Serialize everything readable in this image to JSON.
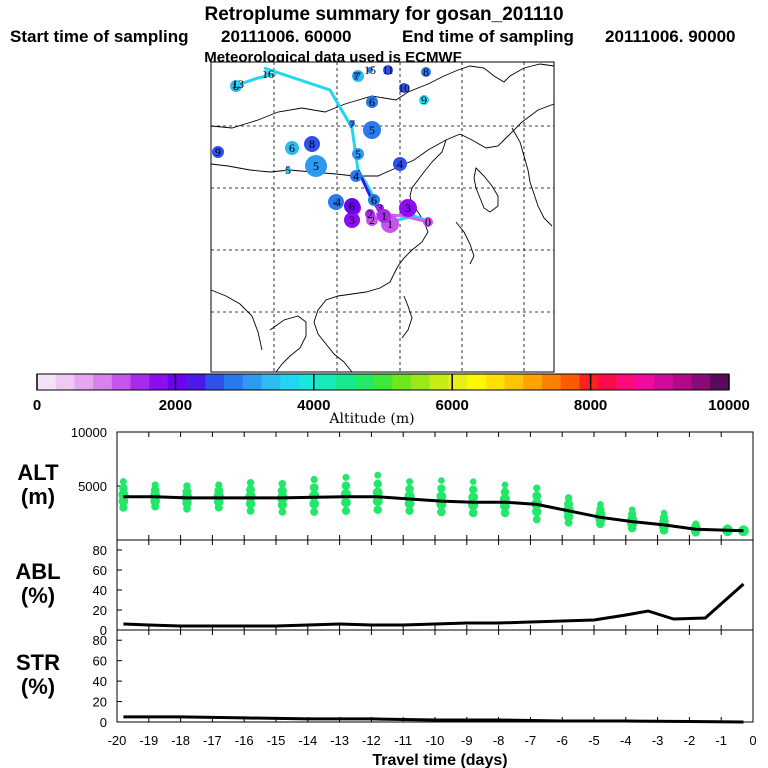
{
  "header": {
    "title": "Retroplume summary for gosan_201110",
    "start_label": "Start time of sampling",
    "start_value": "20111006. 60000",
    "end_label": "End time of sampling",
    "end_value": "20111006. 90000",
    "met": "Meteorological data used is ECMWF"
  },
  "colorbar": {
    "label": "Altitude (m)",
    "ticks": [
      "0",
      "2000",
      "4000",
      "6000",
      "8000",
      "10000"
    ],
    "colors": [
      "#f6e2f6",
      "#efc8f3",
      "#e5a8f0",
      "#d882ee",
      "#c655ed",
      "#a82bec",
      "#8a0ef0",
      "#6a05ee",
      "#4a1ae8",
      "#3050ea",
      "#2a7aef",
      "#2d9af2",
      "#2cbcf2",
      "#20d6f0",
      "#18e8dc",
      "#14ebb6",
      "#15ea8e",
      "#20ea66",
      "#3ee838",
      "#6ee81a",
      "#9ae81a",
      "#c6ec16",
      "#e6f012",
      "#fff800",
      "#ffe000",
      "#ffc400",
      "#ffa400",
      "#ff8000",
      "#ff5a00",
      "#ff2020",
      "#ff0a4a",
      "#ff0a7a",
      "#f20aa0",
      "#d20a9a",
      "#b00a8a",
      "#8a0a78",
      "#5a0a5a"
    ]
  },
  "map": {
    "plume_labels": [
      {
        "t": "0",
        "c": "#c655ed"
      },
      {
        "t": "1",
        "c": "#c655ed"
      },
      {
        "t": "2",
        "c": "#c655ed"
      },
      {
        "t": "3",
        "c": "#a82bec"
      },
      {
        "t": "4",
        "c": "#2a7aef"
      },
      {
        "t": "5",
        "c": "#2d9af2"
      },
      {
        "t": "6",
        "c": "#2a7aef"
      },
      {
        "t": "7",
        "c": "#2cbcf2"
      },
      {
        "t": "8",
        "c": "#2cbcf2"
      },
      {
        "t": "9",
        "c": "#20d6f0"
      },
      {
        "t": "10",
        "c": "#3050ea"
      },
      {
        "t": "11",
        "c": "#3050ea"
      },
      {
        "t": "13",
        "c": "#20d6f0"
      },
      {
        "t": "15",
        "c": "#2a7aef"
      },
      {
        "t": "16",
        "c": "#2cbcf2"
      },
      {
        "t": "6",
        "c": "#2a7aef"
      },
      {
        "t": "7",
        "c": "#2a7aef"
      },
      {
        "t": "5",
        "c": "#2a7aef"
      },
      {
        "t": "4",
        "c": "#3050ea"
      },
      {
        "t": "8",
        "c": "#3050ea"
      },
      {
        "t": "9",
        "c": "#3050ea"
      },
      {
        "t": "5",
        "c": "#2d9af2"
      },
      {
        "t": "6",
        "c": "#2cbcf2"
      },
      {
        "t": "8",
        "c": "#2a7aef"
      },
      {
        "t": "7",
        "c": "#2a7aef"
      },
      {
        "t": "5",
        "c": "#2cbcf2"
      },
      {
        "t": "4",
        "c": "#2a7aef"
      },
      {
        "t": "3",
        "c": "#8a0ef0"
      },
      {
        "t": "2",
        "c": "#8a0ef0"
      },
      {
        "t": "4",
        "c": "#2a7aef"
      },
      {
        "t": "6",
        "c": "#6a05ee"
      },
      {
        "t": "3",
        "c": "#8a0ef0"
      },
      {
        "t": "1",
        "c": "#a82bec"
      },
      {
        "t": "2",
        "c": "#a82bec"
      }
    ]
  },
  "chart_data": [
    {
      "type": "scatter",
      "name": "ALT",
      "ylabel": "ALT",
      "yunit": "(m)",
      "ylim": [
        0,
        10000
      ],
      "yticks": [
        "10000",
        "5000"
      ],
      "x": [
        -19.8,
        -18.8,
        -17.8,
        -16.8,
        -15.8,
        -14.8,
        -13.8,
        -12.8,
        -11.8,
        -10.8,
        -9.8,
        -8.8,
        -7.8,
        -6.8,
        -5.8,
        -4.8,
        -3.8,
        -2.8,
        -1.8,
        -0.8,
        -0.3
      ],
      "median": [
        4000,
        4000,
        3900,
        3900,
        3900,
        3900,
        3950,
        4000,
        4000,
        3800,
        3600,
        3500,
        3500,
        3300,
        2700,
        2100,
        1700,
        1400,
        1000,
        900,
        850
      ],
      "spread_upper": [
        5400,
        5100,
        5000,
        5100,
        5300,
        5200,
        5600,
        5800,
        6000,
        5400,
        5500,
        5400,
        5100,
        4800,
        3900,
        3300,
        2800,
        2500,
        1500,
        1100,
        900
      ],
      "spread_lower": [
        3000,
        3100,
        2900,
        3000,
        2700,
        2600,
        2600,
        2700,
        2800,
        2700,
        2600,
        2500,
        2500,
        1900,
        1600,
        1500,
        1100,
        900,
        700,
        700,
        700
      ]
    },
    {
      "type": "line",
      "name": "ABL",
      "ylabel": "ABL",
      "yunit": "(%)",
      "ylim": [
        0,
        90
      ],
      "yticks": [
        "0",
        "20",
        "40",
        "60",
        "80"
      ],
      "x": [
        -19.8,
        -19,
        -18,
        -17,
        -16,
        -15,
        -14,
        -13,
        -12,
        -11,
        -10,
        -9,
        -8,
        -7,
        -6,
        -5,
        -4,
        -3.3,
        -2.5,
        -1.5,
        -0.3
      ],
      "values": [
        6,
        5,
        4,
        4,
        4,
        4,
        5,
        6,
        5,
        5,
        6,
        7,
        7,
        8,
        9,
        10,
        15,
        19,
        11,
        12,
        46
      ]
    },
    {
      "type": "line",
      "name": "STR",
      "ylabel": "STR",
      "yunit": "(%)",
      "ylim": [
        0,
        90
      ],
      "yticks": [
        "0",
        "20",
        "40",
        "60",
        "80"
      ],
      "x": [
        -19.8,
        -18,
        -16,
        -14,
        -12,
        -10,
        -8,
        -6,
        -4,
        -2,
        -0.3
      ],
      "values": [
        5,
        5,
        4,
        3,
        3,
        2,
        2,
        1,
        1,
        0.5,
        0
      ]
    }
  ],
  "xaxis": {
    "label": "Travel time (days)",
    "xlim": [
      -20,
      0
    ],
    "ticks": [
      "-20",
      "-19",
      "-18",
      "-17",
      "-16",
      "-15",
      "-14",
      "-13",
      "-12",
      "-11",
      "-10",
      "-9",
      "-8",
      "-7",
      "-6",
      "-5",
      "-4",
      "-3",
      "-2",
      "-1",
      "0"
    ]
  }
}
